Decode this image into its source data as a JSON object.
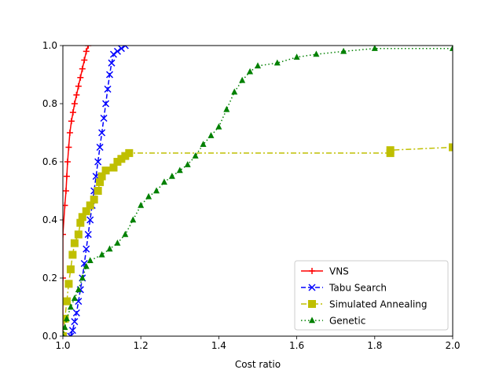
{
  "chart_data": {
    "type": "line",
    "title": "",
    "xlabel": "Cost ratio",
    "ylabel": "",
    "xlim": [
      1.0,
      2.0
    ],
    "ylim": [
      0.0,
      1.0
    ],
    "x_ticks": [
      "1.0",
      "1.2",
      "1.4",
      "1.6",
      "1.8",
      "2.0"
    ],
    "y_ticks": [
      "0.0",
      "0.2",
      "0.4",
      "0.6",
      "0.8",
      "1.0"
    ],
    "grid": false,
    "legend_position": "lower-right",
    "series": [
      {
        "name": "VNS",
        "color": "#ff0000",
        "line_style": "solid",
        "marker": "plus",
        "points": [
          [
            1.0,
            0.0
          ],
          [
            1.0,
            0.2
          ],
          [
            1.0,
            0.35
          ],
          [
            1.005,
            0.45
          ],
          [
            1.008,
            0.5
          ],
          [
            1.01,
            0.55
          ],
          [
            1.012,
            0.6
          ],
          [
            1.015,
            0.65
          ],
          [
            1.018,
            0.7
          ],
          [
            1.022,
            0.74
          ],
          [
            1.026,
            0.77
          ],
          [
            1.03,
            0.8
          ],
          [
            1.035,
            0.83
          ],
          [
            1.04,
            0.86
          ],
          [
            1.045,
            0.89
          ],
          [
            1.05,
            0.92
          ],
          [
            1.055,
            0.95
          ],
          [
            1.06,
            0.98
          ],
          [
            1.065,
            1.0
          ]
        ]
      },
      {
        "name": "Tabu Search",
        "color": "#0000ff",
        "line_style": "dashed",
        "marker": "x",
        "points": [
          [
            1.02,
            0.0
          ],
          [
            1.025,
            0.02
          ],
          [
            1.03,
            0.05
          ],
          [
            1.035,
            0.08
          ],
          [
            1.04,
            0.12
          ],
          [
            1.045,
            0.16
          ],
          [
            1.05,
            0.2
          ],
          [
            1.055,
            0.25
          ],
          [
            1.06,
            0.3
          ],
          [
            1.065,
            0.35
          ],
          [
            1.07,
            0.4
          ],
          [
            1.075,
            0.45
          ],
          [
            1.08,
            0.5
          ],
          [
            1.085,
            0.55
          ],
          [
            1.09,
            0.6
          ],
          [
            1.095,
            0.65
          ],
          [
            1.1,
            0.7
          ],
          [
            1.105,
            0.75
          ],
          [
            1.11,
            0.8
          ],
          [
            1.115,
            0.85
          ],
          [
            1.12,
            0.9
          ],
          [
            1.125,
            0.94
          ],
          [
            1.13,
            0.97
          ],
          [
            1.14,
            0.98
          ],
          [
            1.15,
            0.99
          ],
          [
            1.16,
            1.0
          ]
        ]
      },
      {
        "name": "Simulated Annealing",
        "color": "#bfbf00",
        "line_style": "dashdot",
        "marker": "square",
        "points": [
          [
            1.0,
            0.0
          ],
          [
            1.005,
            0.06
          ],
          [
            1.01,
            0.12
          ],
          [
            1.015,
            0.18
          ],
          [
            1.02,
            0.23
          ],
          [
            1.025,
            0.28
          ],
          [
            1.03,
            0.32
          ],
          [
            1.04,
            0.35
          ],
          [
            1.045,
            0.39
          ],
          [
            1.05,
            0.41
          ],
          [
            1.06,
            0.43
          ],
          [
            1.07,
            0.45
          ],
          [
            1.08,
            0.47
          ],
          [
            1.09,
            0.5
          ],
          [
            1.095,
            0.53
          ],
          [
            1.1,
            0.55
          ],
          [
            1.11,
            0.57
          ],
          [
            1.13,
            0.58
          ],
          [
            1.14,
            0.6
          ],
          [
            1.15,
            0.61
          ],
          [
            1.16,
            0.62
          ],
          [
            1.17,
            0.63
          ],
          [
            1.84,
            0.63
          ],
          [
            1.84,
            0.64
          ],
          [
            2.0,
            0.65
          ]
        ]
      },
      {
        "name": "Genetic",
        "color": "#008000",
        "line_style": "dotted",
        "marker": "triangle",
        "points": [
          [
            1.0,
            0.0
          ],
          [
            1.005,
            0.03
          ],
          [
            1.01,
            0.06
          ],
          [
            1.02,
            0.1
          ],
          [
            1.03,
            0.13
          ],
          [
            1.04,
            0.16
          ],
          [
            1.05,
            0.2
          ],
          [
            1.06,
            0.24
          ],
          [
            1.07,
            0.26
          ],
          [
            1.1,
            0.28
          ],
          [
            1.12,
            0.3
          ],
          [
            1.14,
            0.32
          ],
          [
            1.16,
            0.35
          ],
          [
            1.18,
            0.4
          ],
          [
            1.2,
            0.45
          ],
          [
            1.22,
            0.48
          ],
          [
            1.24,
            0.5
          ],
          [
            1.26,
            0.53
          ],
          [
            1.28,
            0.55
          ],
          [
            1.3,
            0.57
          ],
          [
            1.32,
            0.59
          ],
          [
            1.34,
            0.62
          ],
          [
            1.36,
            0.66
          ],
          [
            1.38,
            0.69
          ],
          [
            1.4,
            0.72
          ],
          [
            1.42,
            0.78
          ],
          [
            1.44,
            0.84
          ],
          [
            1.46,
            0.88
          ],
          [
            1.48,
            0.91
          ],
          [
            1.5,
            0.93
          ],
          [
            1.55,
            0.94
          ],
          [
            1.6,
            0.96
          ],
          [
            1.65,
            0.97
          ],
          [
            1.72,
            0.98
          ],
          [
            1.8,
            0.99
          ],
          [
            2.0,
            0.99
          ]
        ]
      }
    ]
  }
}
